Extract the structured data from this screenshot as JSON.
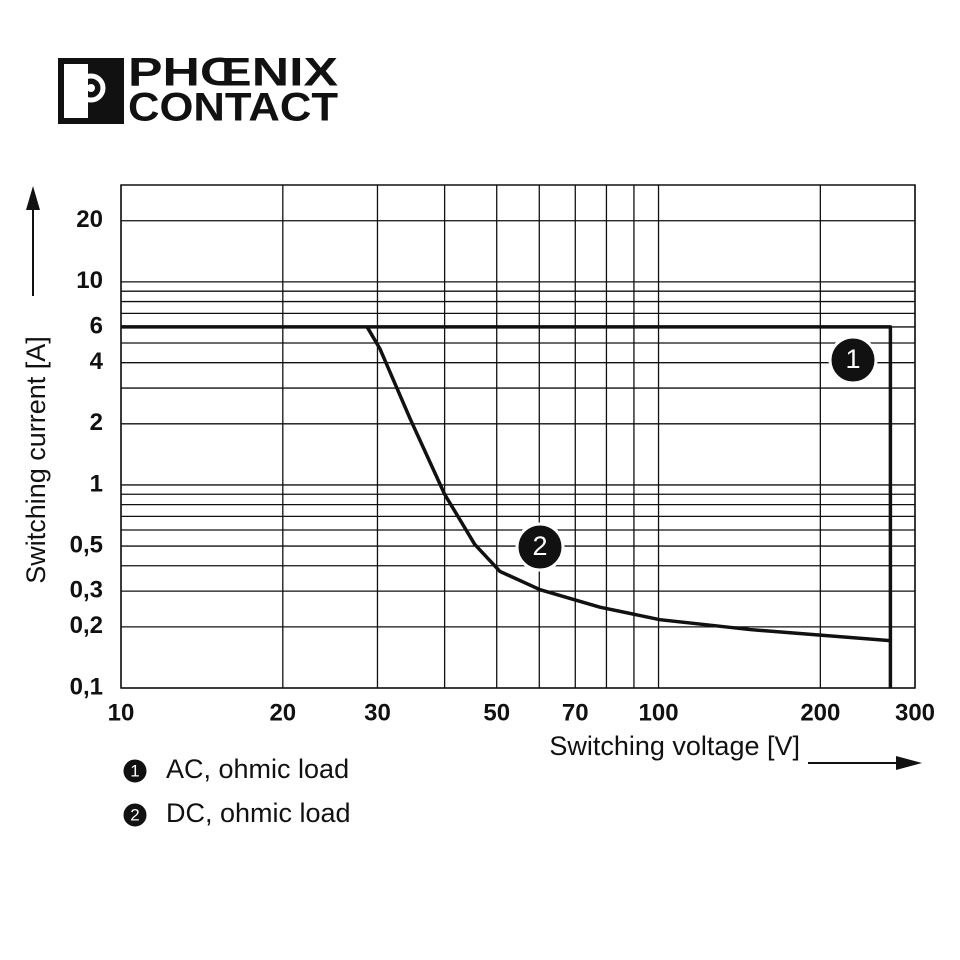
{
  "logo": [
    "PHŒNIX",
    "CONTACT"
  ],
  "chart_data": {
    "type": "line",
    "x_label": "Switching voltage [V]",
    "y_label": "Switching current [A]",
    "log_x": true,
    "log_y": true,
    "grid": true,
    "xlim": [
      10,
      300
    ],
    "ylim": [
      0.1,
      30
    ],
    "xticks": [
      10,
      20,
      30,
      50,
      70,
      100,
      200,
      300
    ],
    "x_minor_grid": [
      40,
      60,
      80,
      90
    ],
    "yticks": [
      {
        "value": 0.1,
        "label": "0,1"
      },
      {
        "value": 0.2,
        "label": "0,2"
      },
      {
        "value": 0.3,
        "label": "0,3"
      },
      {
        "value": 0.5,
        "label": "0,5"
      },
      1,
      2,
      4,
      6,
      10,
      20
    ],
    "y_minor_grid": [
      0.4,
      0.6,
      0.7,
      0.8,
      0.9,
      3,
      5,
      7,
      8,
      9
    ],
    "series": [
      {
        "name": "AC, ohmic load",
        "marker": "1",
        "color": "#111111",
        "x": [
          10,
          270,
          270
        ],
        "values": [
          6,
          6,
          0.1
        ]
      },
      {
        "name": "DC, ohmic load",
        "marker": "2",
        "color": "#111111",
        "x": [
          28.7,
          30.3,
          34.5,
          40,
          45.5,
          50.7,
          60.2,
          77.8,
          100.6,
          148,
          270
        ],
        "values": [
          6,
          4.7,
          2.12,
          0.9,
          0.51,
          0.375,
          0.305,
          0.25,
          0.217,
          0.194,
          0.171
        ]
      }
    ]
  }
}
